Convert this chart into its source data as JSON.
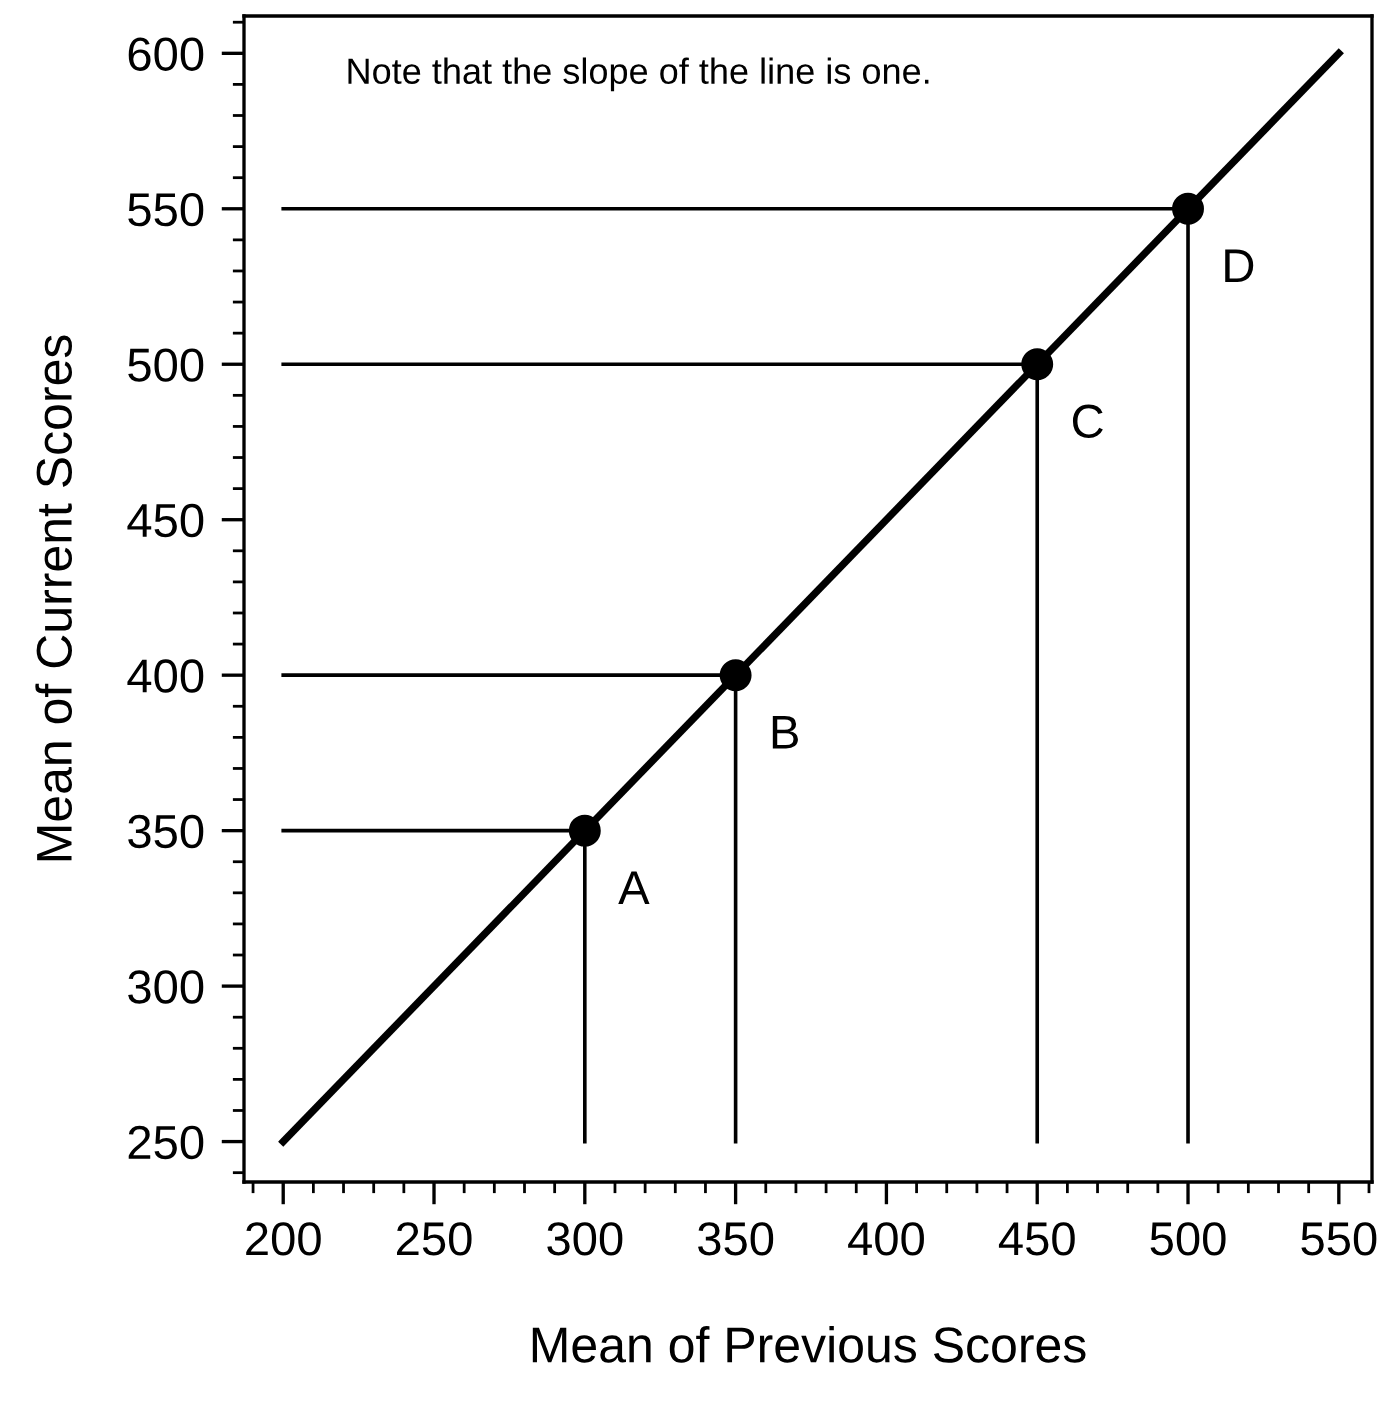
{
  "chart_data": {
    "type": "line",
    "xlabel": "Mean of Previous Scores",
    "ylabel": "Mean of Current Scores",
    "xlim": [
      187,
      561
    ],
    "ylim": [
      237,
      612
    ],
    "xticks": [
      200,
      250,
      300,
      350,
      400,
      450,
      500,
      550
    ],
    "yticks": [
      250,
      300,
      350,
      400,
      450,
      500,
      550,
      600
    ],
    "grid": false,
    "legend": false,
    "series": [
      {
        "color": "#000000",
        "x": [
          200,
          550
        ],
        "values": [
          250,
          600
        ],
        "marker": "none"
      },
      {
        "color": "#000000",
        "x": [
          200,
          300,
          300
        ],
        "values": [
          350,
          350,
          250
        ],
        "marker": "none"
      },
      {
        "color": "#000000",
        "x": [
          200,
          350,
          350
        ],
        "values": [
          400,
          400,
          250
        ],
        "marker": "none"
      },
      {
        "color": "#000000",
        "x": [
          200,
          450,
          450
        ],
        "values": [
          500,
          500,
          250
        ],
        "marker": "none"
      },
      {
        "color": "#000000",
        "x": [
          200,
          500,
          500
        ],
        "values": [
          550,
          550,
          250
        ],
        "marker": "none"
      },
      {
        "type": "scatter",
        "color": "#000000",
        "x": [
          300,
          350,
          450,
          500
        ],
        "values": [
          350,
          400,
          500,
          550
        ],
        "marker": "circle"
      }
    ],
    "annotations": [
      {
        "text": "A",
        "x": 300,
        "y": 350
      },
      {
        "text": "B",
        "x": 350,
        "y": 400
      },
      {
        "text": "C",
        "x": 450,
        "y": 500
      },
      {
        "text": "D",
        "x": 500,
        "y": 550
      },
      "Note that the slope of the line is one."
    ]
  }
}
